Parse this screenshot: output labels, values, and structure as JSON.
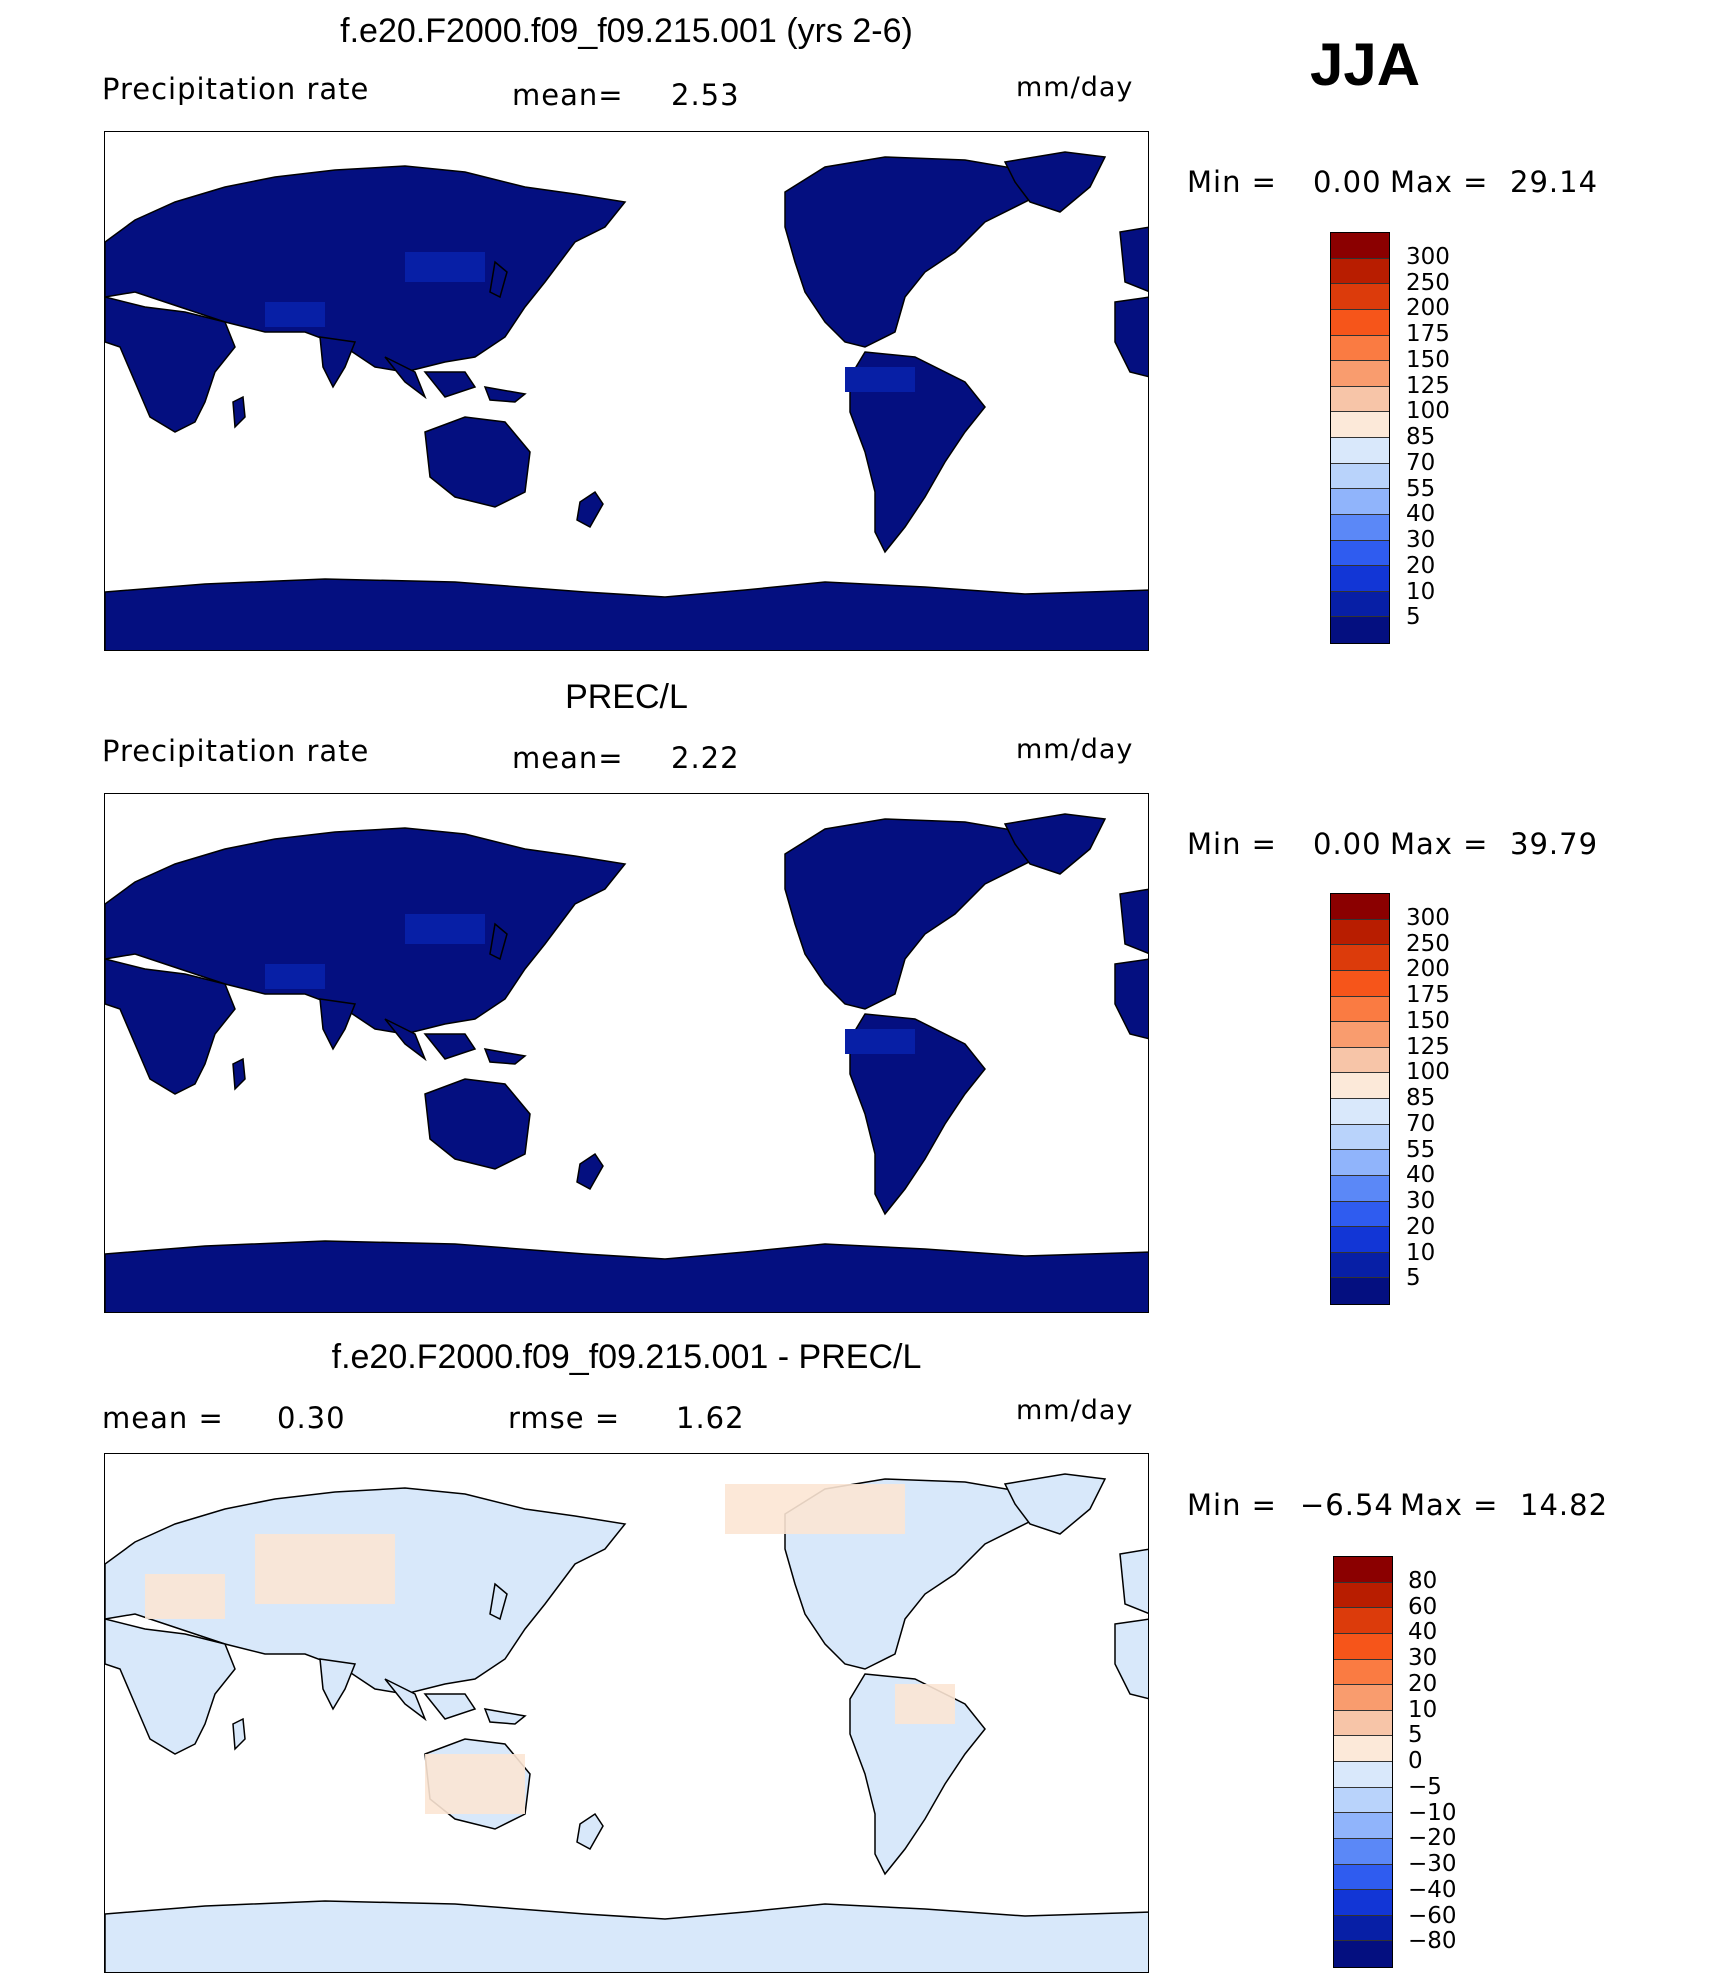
{
  "season": "JJA",
  "chart_data": [
    {
      "type": "heatmap",
      "title": "f.e20.F2000.f09_f09.215.001 (yrs 2-6)",
      "variable": "Precipitation rate",
      "mean_label": "mean=",
      "mean_value": "2.53",
      "units": "mm/day",
      "min_label": "Min =",
      "min_value": "0.00",
      "max_label": "Max =",
      "max_value": "29.14",
      "colorbar_labels": [
        "300",
        "250",
        "200",
        "175",
        "150",
        "125",
        "100",
        "85",
        "70",
        "55",
        "40",
        "30",
        "20",
        "10",
        "5"
      ],
      "colorbar_colors": [
        "#8b0000",
        "#b81d00",
        "#dc3b0b",
        "#f6551a",
        "#fa7b42",
        "#f99c6e",
        "#f7c5a8",
        "#fce9d9",
        "#d9e8fb",
        "#b9d3fb",
        "#90b4fb",
        "#5b88f7",
        "#2f5cf0",
        "#1236d6",
        "#071fa6",
        "#040f80"
      ],
      "land_color": "#040f80"
    },
    {
      "type": "heatmap",
      "title": "PREC/L",
      "variable": "Precipitation rate",
      "mean_label": "mean=",
      "mean_value": "2.22",
      "units": "mm/day",
      "min_label": "Min =",
      "min_value": "0.00",
      "max_label": "Max =",
      "max_value": "39.79",
      "colorbar_labels": [
        "300",
        "250",
        "200",
        "175",
        "150",
        "125",
        "100",
        "85",
        "70",
        "55",
        "40",
        "30",
        "20",
        "10",
        "5"
      ],
      "colorbar_colors": [
        "#8b0000",
        "#b81d00",
        "#dc3b0b",
        "#f6551a",
        "#fa7b42",
        "#f99c6e",
        "#f7c5a8",
        "#fce9d9",
        "#d9e8fb",
        "#b9d3fb",
        "#90b4fb",
        "#5b88f7",
        "#2f5cf0",
        "#1236d6",
        "#071fa6",
        "#040f80"
      ],
      "land_color": "#040f80"
    },
    {
      "type": "heatmap",
      "title": "f.e20.F2000.f09_f09.215.001 - PREC/L",
      "mean_label": "mean =",
      "mean_value": "0.30",
      "rmse_label": "rmse =",
      "rmse_value": "1.62",
      "units": "mm/day",
      "min_label": "Min =",
      "min_value": "−6.54",
      "max_label": "Max =",
      "max_value": "14.82",
      "colorbar_labels": [
        "80",
        "60",
        "40",
        "30",
        "20",
        "10",
        "5",
        "0",
        "−5",
        "−10",
        "−20",
        "−30",
        "−40",
        "−60",
        "−80"
      ],
      "colorbar_colors": [
        "#8b0000",
        "#b81d00",
        "#dc3b0b",
        "#f6551a",
        "#fa7b42",
        "#f99c6e",
        "#f7c5a8",
        "#fce9d9",
        "#d9e8fb",
        "#b9d3fb",
        "#90b4fb",
        "#5b88f7",
        "#2f5cf0",
        "#1236d6",
        "#071fa6",
        "#040f80"
      ],
      "land_color": "#fce6d4",
      "land_color_alt": "#d8e8fa"
    }
  ]
}
